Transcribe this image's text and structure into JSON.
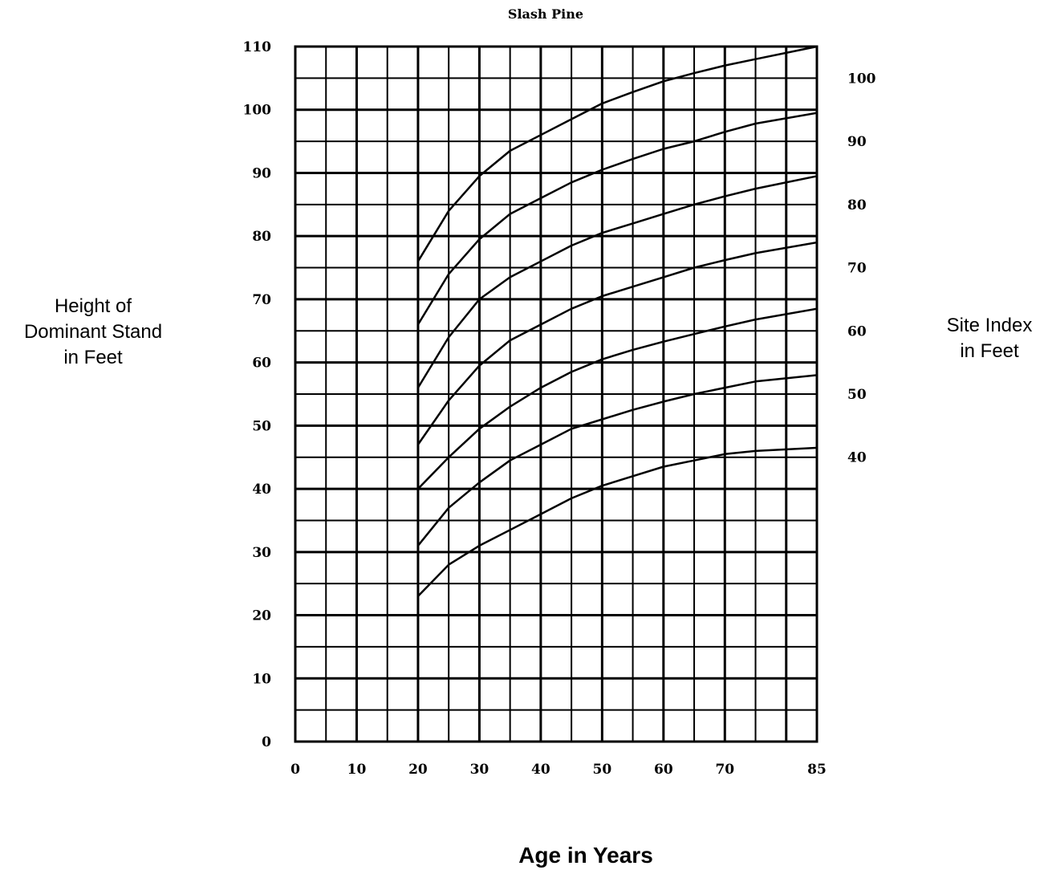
{
  "chart_data": {
    "type": "line",
    "title": "Slash Pine",
    "xlabel": "Age in Years",
    "ylabel": [
      "Height of",
      "Dominant Stand",
      "in Feet"
    ],
    "y2label": [
      "Site Index",
      "in Feet"
    ],
    "xlim": [
      0,
      85
    ],
    "ylim": [
      0,
      110
    ],
    "x_ticks": [
      0,
      10,
      20,
      30,
      40,
      50,
      60,
      70,
      85
    ],
    "x_tick_labels": [
      "0",
      "10",
      "20",
      "30",
      "40",
      "50",
      "60",
      "70",
      "85"
    ],
    "y_ticks": [
      0,
      10,
      20,
      30,
      40,
      50,
      60,
      70,
      80,
      90,
      100,
      110
    ],
    "y_tick_labels": [
      "0",
      "10",
      "20",
      "30",
      "40",
      "50",
      "60",
      "70",
      "80",
      "90",
      "100",
      "110"
    ],
    "grid": true,
    "grid_step_minor": [
      5,
      5
    ],
    "series": [
      {
        "name": "100",
        "x": [
          20,
          25,
          30,
          35,
          40,
          45,
          50,
          55,
          60,
          65,
          70,
          75,
          85
        ],
        "y": [
          76,
          84,
          89.5,
          93.5,
          96,
          98.5,
          101,
          102.8,
          104.5,
          105.8,
          107,
          108,
          110
        ]
      },
      {
        "name": "90",
        "x": [
          20,
          25,
          30,
          35,
          40,
          45,
          50,
          55,
          60,
          65,
          70,
          75,
          85
        ],
        "y": [
          66,
          74,
          79.5,
          83.5,
          86,
          88.5,
          90.5,
          92.2,
          93.8,
          95,
          96.5,
          97.8,
          99.5
        ]
      },
      {
        "name": "80",
        "x": [
          20,
          25,
          30,
          35,
          40,
          45,
          50,
          55,
          60,
          65,
          70,
          75,
          85
        ],
        "y": [
          56,
          64,
          70,
          73.5,
          76,
          78.5,
          80.5,
          82,
          83.5,
          85,
          86.3,
          87.5,
          89.5
        ]
      },
      {
        "name": "70",
        "x": [
          20,
          25,
          30,
          35,
          40,
          45,
          50,
          55,
          60,
          65,
          70,
          75,
          85
        ],
        "y": [
          47,
          54,
          59.5,
          63.5,
          66,
          68.5,
          70.5,
          72,
          73.5,
          75,
          76.2,
          77.3,
          79
        ]
      },
      {
        "name": "60",
        "x": [
          20,
          25,
          30,
          35,
          40,
          45,
          50,
          55,
          60,
          65,
          70,
          75,
          85
        ],
        "y": [
          40,
          45,
          49.5,
          53,
          56,
          58.5,
          60.5,
          62,
          63.3,
          64.5,
          65.7,
          66.8,
          68.5
        ]
      },
      {
        "name": "50",
        "x": [
          20,
          25,
          30,
          35,
          40,
          45,
          50,
          55,
          60,
          65,
          70,
          75,
          85
        ],
        "y": [
          31,
          37,
          41,
          44.5,
          47,
          49.5,
          51,
          52.5,
          53.8,
          55,
          56,
          57,
          58
        ]
      },
      {
        "name": "40",
        "x": [
          20,
          25,
          30,
          35,
          40,
          45,
          50,
          55,
          60,
          65,
          70,
          75,
          85
        ],
        "y": [
          23,
          28,
          31,
          33.5,
          36,
          38.5,
          40.5,
          42,
          43.5,
          44.5,
          45.5,
          46,
          46.5
        ]
      }
    ],
    "site_index_labels": [
      "100",
      "90",
      "80",
      "70",
      "60",
      "50",
      "40"
    ]
  }
}
